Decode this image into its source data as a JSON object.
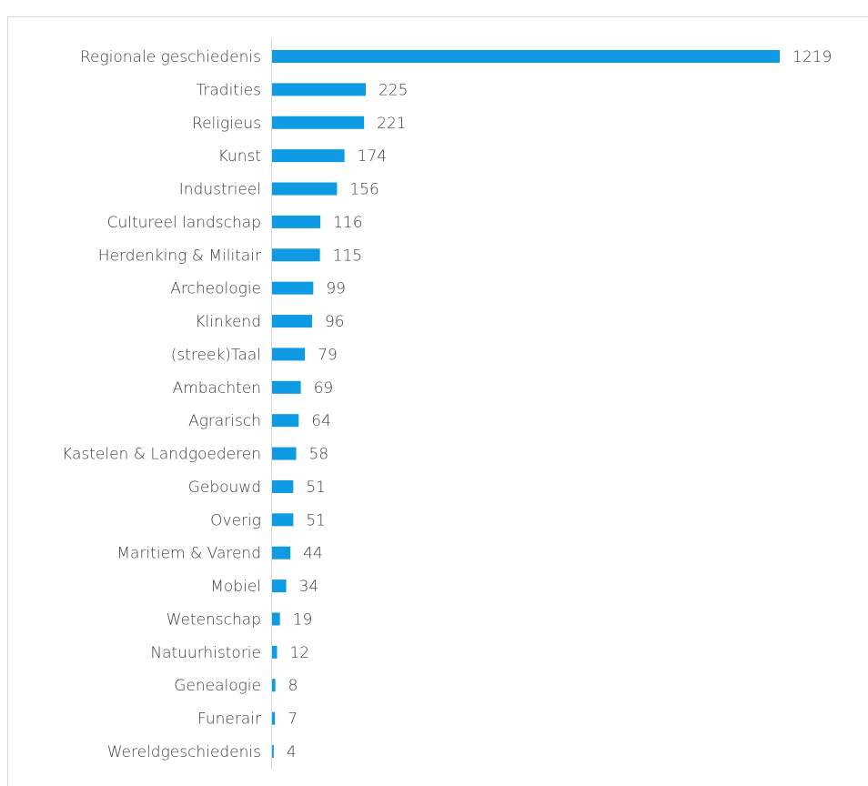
{
  "chart_data": {
    "type": "bar",
    "orientation": "horizontal",
    "categories": [
      "Regionale geschiedenis",
      "Tradities",
      "Religieus",
      "Kunst",
      "Industrieel",
      "Cultureel landschap",
      "Herdenking & Militair",
      "Archeologie",
      "Klinkend",
      "(streek)Taal",
      "Ambachten",
      "Agrarisch",
      "Kastelen & Landgoederen",
      "Gebouwd",
      "Overig",
      "Maritiem & Varend",
      "Mobiel",
      "Wetenschap",
      "Natuurhistorie",
      "Genealogie",
      "Funerair",
      "Wereldgeschiedenis"
    ],
    "values": [
      1219,
      225,
      221,
      174,
      156,
      116,
      115,
      99,
      96,
      79,
      69,
      64,
      58,
      51,
      51,
      44,
      34,
      19,
      12,
      8,
      7,
      4
    ],
    "color": "#0e9be3"
  }
}
